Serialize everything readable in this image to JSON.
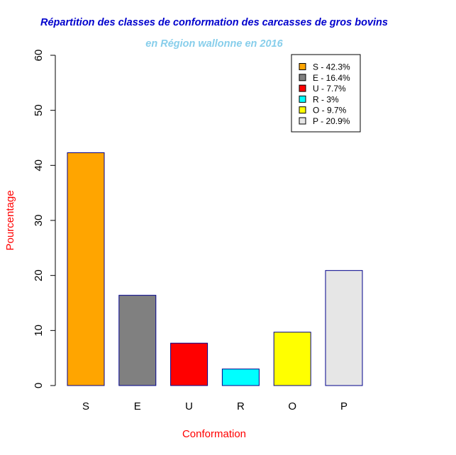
{
  "chart_data": {
    "type": "bar",
    "title": "Répartition des classes de conformation des carcasses de gros bovins",
    "subtitle": "en Région wallonne en 2016",
    "xlabel": "Conformation",
    "ylabel": "Pourcentage",
    "ylim": [
      0,
      60
    ],
    "yticks": [
      "0",
      "10",
      "20",
      "30",
      "40",
      "50",
      "60"
    ],
    "categories": [
      "S",
      "E",
      "U",
      "R",
      "O",
      "P"
    ],
    "values": [
      42.3,
      16.4,
      7.7,
      3.0,
      9.7,
      20.9
    ],
    "colors": [
      "#FFA500",
      "#808080",
      "#FF0000",
      "#00FFFF",
      "#FFFF00",
      "#E6E6E6"
    ],
    "bar_border_color": "#00008B",
    "title_color": "#0000CD",
    "subtitle_color": "#87CEEB",
    "axis_label_color": "#FF0000",
    "legend": {
      "placement": "top-right",
      "entries": [
        "S - 42.3%",
        "E - 16.4%",
        "U - 7.7%",
        "R - 3%",
        "O - 9.7%",
        "P - 20.9%"
      ]
    },
    "grid": false
  }
}
